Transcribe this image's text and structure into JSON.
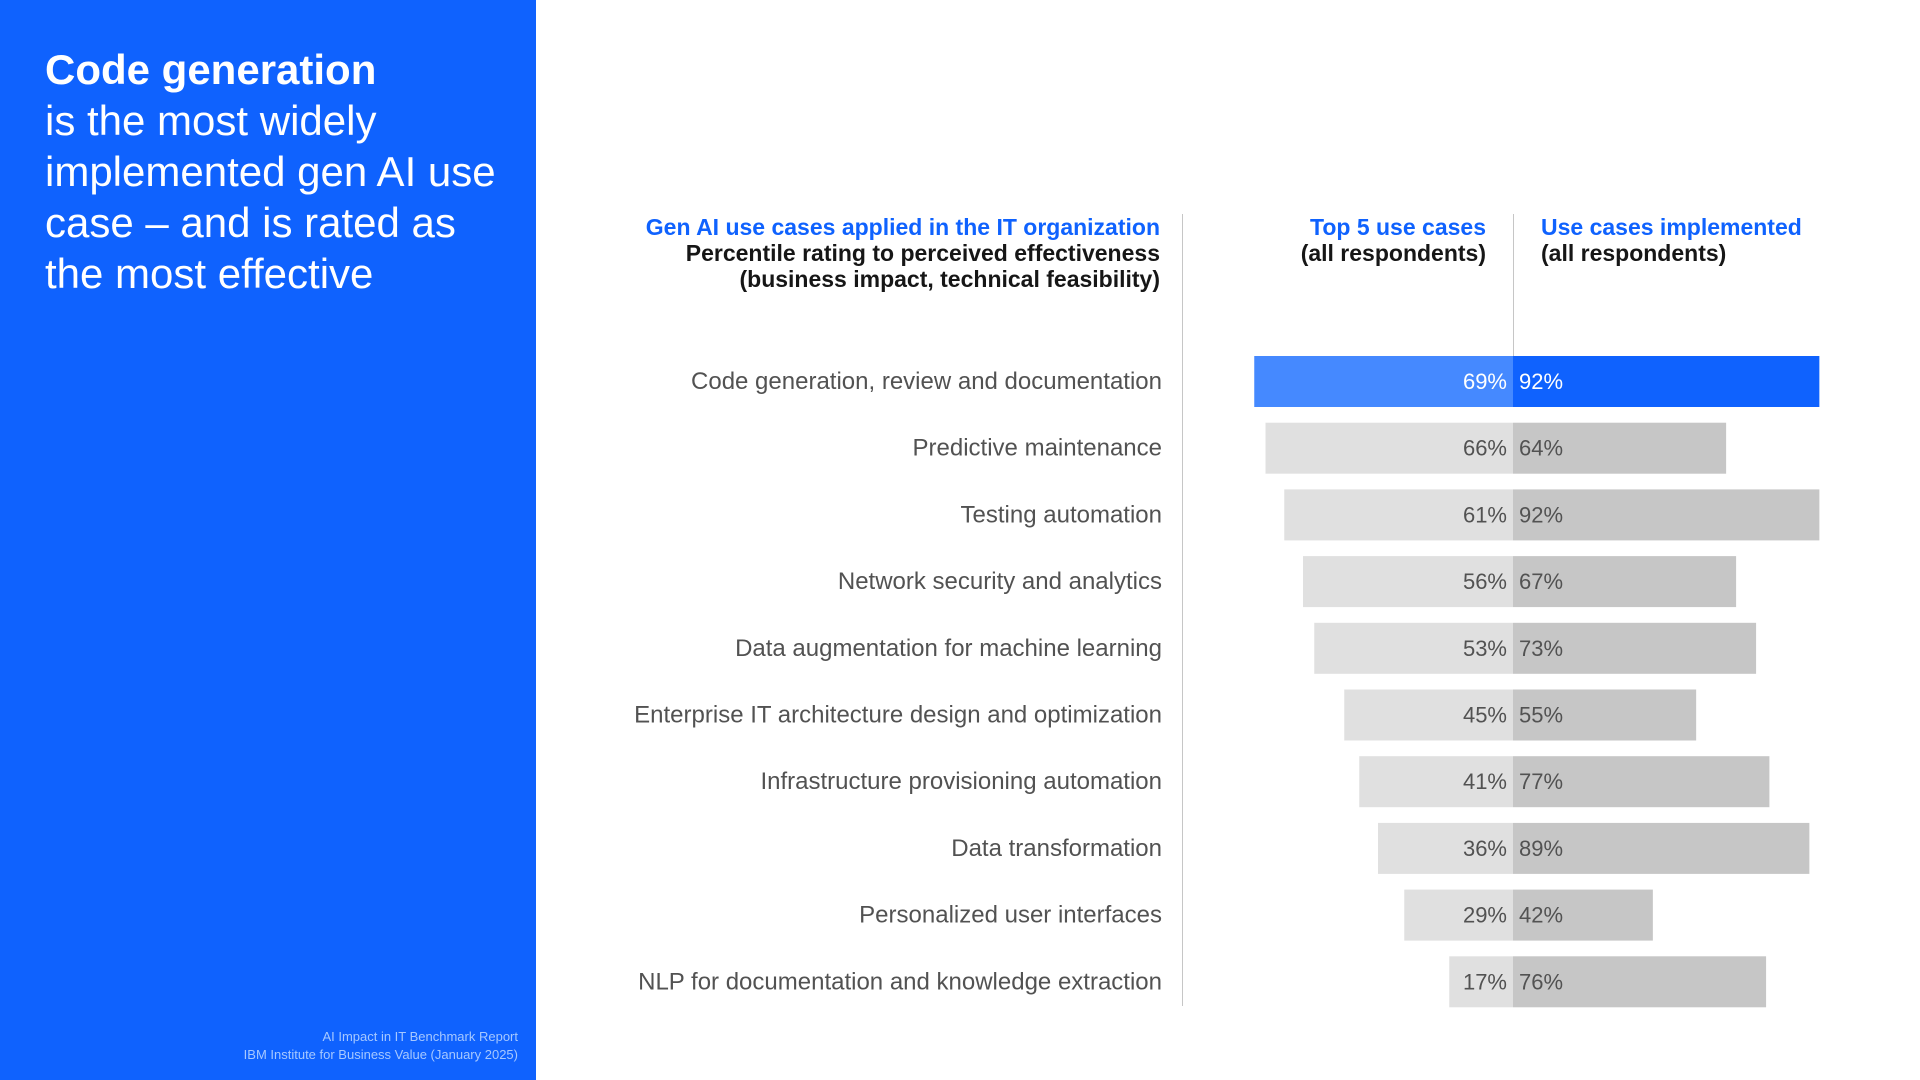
{
  "headline": {
    "bold": "Code generation",
    "rest": "is the most widely implemented gen AI use case – and is rated as the most effective"
  },
  "source": {
    "line1": "AI Impact in IT Benchmark Report",
    "line2": "IBM Institute for Business Value (January 2025)"
  },
  "legend": {
    "left": {
      "title": "Gen AI use cases applied in the IT organization",
      "line2": "Percentile rating to perceived effectiveness",
      "line3": "(business impact, technical feasibility)"
    },
    "mid": {
      "title": "Top 5 use cases",
      "sub": "(all respondents)"
    },
    "right": {
      "title": "Use cases implemented",
      "sub": "(all respondents)"
    }
  },
  "colors": {
    "brand_blue": "#0f62fe",
    "highlight_left": "#4589ff",
    "highlight_right": "#0f62fe",
    "bar_left": "#e0e0e0",
    "bar_right": "#c6c6c6"
  },
  "chart_data": {
    "type": "bar",
    "orientation": "horizontal-diverging",
    "categories": [
      "Code generation, review and documentation",
      "Predictive maintenance",
      "Testing automation",
      "Network security and analytics",
      "Data augmentation for machine learning",
      "Enterprise IT architecture design and optimization",
      "Infrastructure provisioning automation",
      "Data transformation",
      "Personalized user interfaces",
      "NLP for documentation and knowledge extraction"
    ],
    "series": [
      {
        "name": "Top 5 use cases (all respondents)",
        "values": [
          69,
          66,
          61,
          56,
          53,
          45,
          41,
          36,
          29,
          17
        ],
        "labels": [
          "69%",
          "66%",
          "61%",
          "56%",
          "53%",
          "45%",
          "41%",
          "36%",
          "29%",
          "17%"
        ]
      },
      {
        "name": "Use cases implemented (all respondents)",
        "values": [
          92,
          64,
          92,
          67,
          73,
          55,
          77,
          89,
          42,
          76
        ],
        "labels": [
          "92%",
          "64%",
          "92%",
          "67%",
          "73%",
          "55%",
          "77%",
          "89%",
          "42%",
          "76%"
        ]
      }
    ],
    "highlight_index": 0,
    "unit": "%"
  }
}
